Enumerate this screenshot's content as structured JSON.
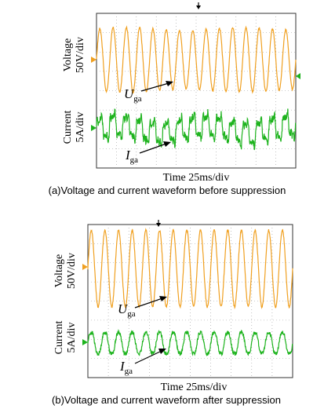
{
  "chart_data": [
    {
      "type": "line",
      "caption": "(a)Voltage and  current waveform before suppression",
      "xlabel": "Time 25ms/div",
      "voltage_axis_label": [
        "Voltage",
        "50V/div"
      ],
      "current_axis_label": [
        "Current",
        "5A/div"
      ],
      "annotations": [
        {
          "symbol": "U",
          "subscript": "ga"
        },
        {
          "symbol": "I",
          "subscript": "ga"
        }
      ],
      "grid": true,
      "time_divisions": 10,
      "vertical_divisions": 8,
      "series": [
        {
          "name": "Uga",
          "color": "#f0a020",
          "cycles": 15,
          "amplitude_div": 1.6,
          "center_div": 2.4
        },
        {
          "name": "Iga",
          "color": "#1db31d",
          "cycles": 15,
          "amplitude_div": 0.8,
          "center_div": 6.0,
          "distortion": "high"
        }
      ]
    },
    {
      "type": "line",
      "caption": "(b)Voltage and current waveform after suppression",
      "xlabel": "Time 25ms/div",
      "voltage_axis_label": [
        "Voltage",
        "50V/div"
      ],
      "current_axis_label": [
        "Current",
        "5A/div"
      ],
      "annotations": [
        {
          "symbol": "U",
          "subscript": "ga"
        },
        {
          "symbol": "I",
          "subscript": "ga"
        }
      ],
      "grid": true,
      "time_divisions": 10,
      "vertical_divisions": 8,
      "series": [
        {
          "name": "Uga",
          "color": "#f0a020",
          "cycles": 15,
          "amplitude_div": 2.0,
          "center_div": 2.3
        },
        {
          "name": "Iga",
          "color": "#1db31d",
          "cycles": 15,
          "amplitude_div": 0.6,
          "center_div": 6.2,
          "distortion": "low"
        }
      ]
    }
  ]
}
